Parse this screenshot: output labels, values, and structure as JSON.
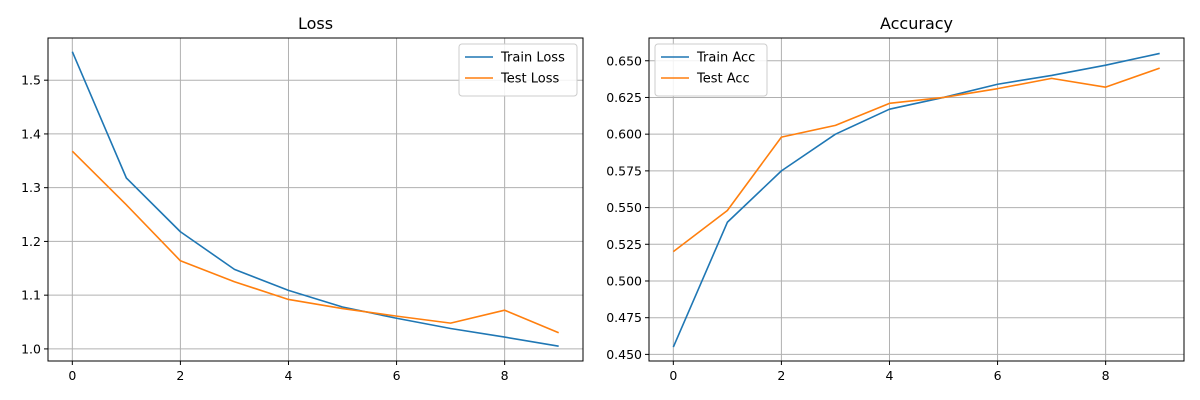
{
  "chart_data": [
    {
      "type": "line",
      "title": "Loss",
      "xlabel": "",
      "ylabel": "",
      "xlim": [
        -0.45,
        9.45
      ],
      "ylim": [
        0.9775,
        1.5785
      ],
      "xticks": [
        "0",
        "2",
        "4",
        "6",
        "8"
      ],
      "yticks": [
        "1.0",
        "1.1",
        "1.2",
        "1.3",
        "1.4",
        "1.5"
      ],
      "grid": true,
      "legend": "top-right",
      "x": [
        0,
        1,
        2,
        3,
        4,
        5,
        6,
        7,
        8,
        9
      ],
      "series": [
        {
          "name": "Train Loss",
          "color": "#1f77b4",
          "values": [
            1.553,
            1.318,
            1.218,
            1.148,
            1.109,
            1.078,
            1.057,
            1.038,
            1.022,
            1.005
          ]
        },
        {
          "name": "Test Loss",
          "color": "#ff7f0e",
          "values": [
            1.368,
            1.268,
            1.164,
            1.125,
            1.092,
            1.075,
            1.061,
            1.048,
            1.072,
            1.03
          ]
        }
      ]
    },
    {
      "type": "line",
      "title": "Accuracy",
      "xlabel": "",
      "ylabel": "",
      "xlim": [
        -0.45,
        9.45
      ],
      "ylim": [
        0.4455,
        0.6655
      ],
      "xticks": [
        "0",
        "2",
        "4",
        "6",
        "8"
      ],
      "yticks": [
        "0.450",
        "0.475",
        "0.500",
        "0.525",
        "0.550",
        "0.575",
        "0.600",
        "0.625",
        "0.650"
      ],
      "grid": true,
      "legend": "top-left",
      "x": [
        0,
        1,
        2,
        3,
        4,
        5,
        6,
        7,
        8,
        9
      ],
      "series": [
        {
          "name": "Train Acc",
          "color": "#1f77b4",
          "values": [
            0.455,
            0.54,
            0.575,
            0.6,
            0.617,
            0.625,
            0.634,
            0.64,
            0.647,
            0.655
          ]
        },
        {
          "name": "Test Acc",
          "color": "#ff7f0e",
          "values": [
            0.52,
            0.548,
            0.598,
            0.606,
            0.621,
            0.625,
            0.631,
            0.638,
            0.632,
            0.645
          ]
        }
      ]
    }
  ]
}
